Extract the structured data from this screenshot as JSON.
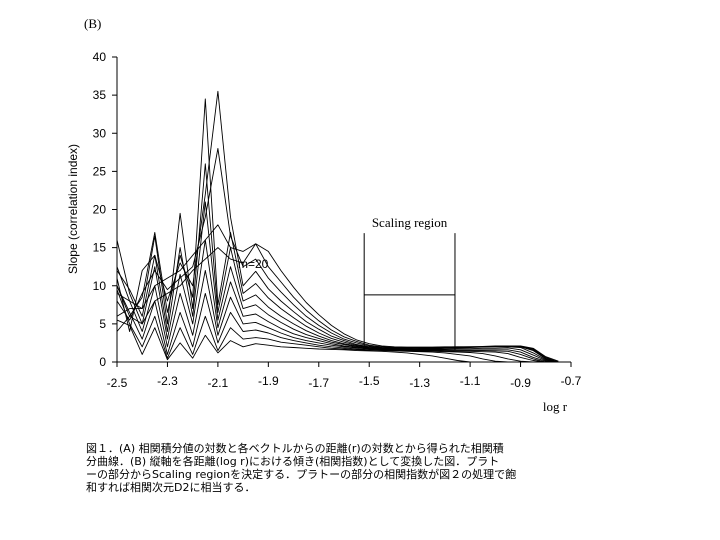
{
  "chart_data": {
    "type": "line",
    "panel_label": "(B)",
    "ylabel": "Slope (correlation index)",
    "xlabel": "log r",
    "xlim": [
      -2.5,
      -0.7
    ],
    "ylim": [
      0,
      40
    ],
    "xticks": [
      "-2.5",
      "-2.3",
      "-2.1",
      "-1.9",
      "-1.7",
      "-1.5",
      "-1.3",
      "-1.1",
      "-0.9",
      "-0.7"
    ],
    "yticks": [
      "0",
      "5",
      "10",
      "15",
      "20",
      "25",
      "30",
      "35",
      "40"
    ],
    "grid": false,
    "series_annotation": "m=20",
    "scaling_region": {
      "label": "Scaling region",
      "x_start": -1.52,
      "x_end": -1.16,
      "marker_level": 8.8
    },
    "x": [
      -2.5,
      -2.45,
      -2.4,
      -2.35,
      -2.3,
      -2.25,
      -2.2,
      -2.15,
      -2.1,
      -2.05,
      -2.0,
      -1.95,
      -1.9,
      -1.85,
      -1.8,
      -1.75,
      -1.7,
      -1.65,
      -1.6,
      -1.55,
      -1.5,
      -1.45,
      -1.4,
      -1.35,
      -1.3,
      -1.25,
      -1.2,
      -1.15,
      -1.1,
      -1.05,
      -1.0,
      -0.95,
      -0.9,
      -0.85,
      -0.8,
      -0.75
    ],
    "series": [
      {
        "values": [
          5.5,
          4.8,
          1.0,
          4.5,
          0.3,
          2.5,
          0.5,
          3.5,
          1.2,
          2.8,
          2.0,
          2.4,
          2.2,
          2.0,
          1.9,
          1.8,
          1.7,
          1.65,
          1.6,
          1.5,
          1.45,
          1.4,
          1.3,
          1.2,
          1.0,
          0.8,
          0.5,
          0.2,
          0.0,
          0.0,
          0.0,
          0.0,
          0.0,
          0.0,
          0.0,
          0.0
        ]
      },
      {
        "values": [
          9.5,
          5.0,
          2.0,
          6.0,
          0.5,
          4.5,
          1.0,
          6.0,
          1.5,
          4.5,
          3.0,
          3.2,
          3.0,
          2.6,
          2.4,
          2.2,
          2.0,
          1.8,
          1.7,
          1.6,
          1.55,
          1.5,
          1.45,
          1.4,
          1.35,
          1.3,
          1.2,
          1.0,
          0.8,
          0.4,
          0.1,
          0.0,
          0.0,
          0.0,
          0.0,
          0.0
        ]
      },
      {
        "values": [
          10.0,
          6.5,
          3.0,
          8.0,
          1.0,
          6.5,
          2.0,
          9.0,
          2.5,
          6.5,
          4.0,
          4.2,
          3.8,
          3.2,
          2.8,
          2.5,
          2.2,
          2.0,
          1.85,
          1.7,
          1.6,
          1.55,
          1.5,
          1.45,
          1.4,
          1.4,
          1.35,
          1.3,
          1.25,
          1.1,
          0.8,
          0.4,
          0.1,
          0.0,
          0.0,
          0.0
        ]
      },
      {
        "values": [
          12.5,
          8.0,
          4.0,
          10.0,
          2.0,
          9.0,
          3.5,
          12.0,
          3.5,
          8.5,
          5.0,
          5.2,
          4.5,
          3.8,
          3.2,
          2.8,
          2.5,
          2.2,
          2.0,
          1.85,
          1.7,
          1.6,
          1.55,
          1.5,
          1.5,
          1.45,
          1.45,
          1.4,
          1.4,
          1.35,
          1.3,
          1.1,
          0.6,
          0.2,
          0.0,
          0.0
        ]
      },
      {
        "values": [
          16.0,
          9.0,
          5.0,
          12.5,
          3.0,
          11.5,
          5.0,
          16.0,
          4.5,
          10.5,
          6.0,
          6.3,
          5.3,
          4.4,
          3.7,
          3.2,
          2.8,
          2.4,
          2.1,
          1.9,
          1.75,
          1.65,
          1.6,
          1.55,
          1.55,
          1.55,
          1.5,
          1.5,
          1.5,
          1.5,
          1.45,
          1.4,
          1.0,
          0.4,
          0.0,
          0.0
        ]
      },
      {
        "values": [
          12.0,
          9.5,
          6.0,
          14.0,
          4.0,
          15.0,
          6.0,
          21.0,
          5.5,
          12.5,
          7.0,
          7.5,
          6.2,
          5.2,
          4.3,
          3.6,
          3.1,
          2.6,
          2.3,
          2.0,
          1.8,
          1.7,
          1.65,
          1.6,
          1.6,
          1.6,
          1.6,
          1.6,
          1.6,
          1.6,
          1.6,
          1.6,
          1.3,
          0.6,
          0.1,
          0.0
        ]
      },
      {
        "values": [
          9.0,
          8.0,
          7.0,
          16.5,
          5.0,
          19.5,
          7.0,
          26.0,
          6.5,
          15.0,
          8.0,
          8.8,
          7.2,
          6.0,
          5.0,
          4.1,
          3.4,
          2.8,
          2.4,
          2.1,
          1.85,
          1.75,
          1.7,
          1.65,
          1.7,
          1.7,
          1.7,
          1.75,
          1.75,
          1.8,
          1.8,
          1.85,
          1.6,
          0.9,
          0.2,
          0.0
        ]
      },
      {
        "values": [
          10.0,
          6.0,
          8.5,
          17.0,
          6.5,
          14.0,
          8.5,
          34.5,
          7.5,
          17.0,
          9.0,
          10.3,
          8.4,
          7.0,
          5.8,
          4.7,
          3.8,
          3.1,
          2.6,
          2.2,
          1.9,
          1.8,
          1.75,
          1.75,
          1.8,
          1.8,
          1.85,
          1.85,
          1.9,
          1.95,
          2.0,
          2.0,
          1.9,
          1.2,
          0.3,
          0.0
        ]
      },
      {
        "values": [
          11.0,
          4.0,
          12.0,
          14.0,
          8.0,
          13.0,
          10.0,
          22.0,
          35.5,
          19.0,
          10.0,
          11.9,
          9.6,
          8.0,
          6.6,
          5.3,
          4.3,
          3.4,
          2.8,
          2.3,
          2.0,
          1.85,
          1.8,
          1.8,
          1.8,
          1.85,
          1.9,
          1.9,
          1.95,
          2.0,
          2.0,
          2.0,
          2.0,
          1.5,
          0.4,
          0.0
        ]
      },
      {
        "values": [
          8.0,
          5.5,
          9.0,
          12.0,
          9.5,
          11.0,
          12.5,
          19.0,
          28.0,
          16.5,
          12.5,
          13.5,
          11.0,
          9.2,
          7.5,
          6.0,
          4.8,
          3.8,
          3.0,
          2.5,
          2.1,
          1.9,
          1.85,
          1.85,
          1.85,
          1.9,
          1.9,
          1.95,
          2.0,
          2.0,
          2.05,
          2.05,
          2.0,
          1.6,
          0.5,
          0.0
        ]
      },
      {
        "values": [
          6.0,
          7.0,
          7.0,
          10.0,
          11.0,
          12.0,
          14.0,
          16.0,
          18.0,
          15.0,
          14.5,
          15.5,
          12.5,
          10.5,
          8.5,
          6.8,
          5.4,
          4.2,
          3.3,
          2.7,
          2.2,
          2.0,
          1.9,
          1.9,
          1.9,
          1.9,
          1.95,
          2.0,
          2.0,
          2.0,
          2.05,
          2.1,
          2.05,
          1.7,
          0.6,
          0.0
        ]
      },
      {
        "values": [
          4.0,
          6.0,
          5.0,
          8.0,
          9.0,
          10.0,
          12.0,
          13.5,
          15.0,
          13.5,
          13.0,
          15.5,
          14.5,
          12.0,
          9.8,
          7.8,
          6.2,
          4.8,
          3.7,
          2.9,
          2.4,
          2.1,
          2.0,
          1.95,
          1.95,
          1.95,
          2.0,
          2.0,
          2.0,
          2.05,
          2.1,
          2.1,
          2.1,
          1.8,
          0.7,
          0.1
        ]
      }
    ]
  },
  "caption": {
    "lines": [
      "図１．(A) 相関積分値の対数と各ベクトルからの距離(r)の対数とから得られた相関積",
      "分曲線．(B) 縦軸を各距離(log r)における傾き(相関指数)として変換した図．プラト",
      "ーの部分からScaling regionを決定する．プラトーの部分の相関指数が図２の処理で飽",
      "和すれば相関次元D2に相当する．"
    ]
  }
}
